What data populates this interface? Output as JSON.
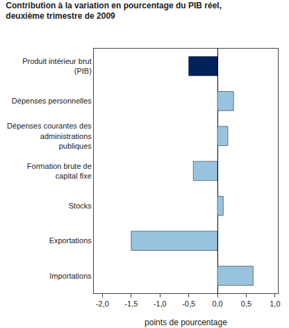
{
  "chart_data": {
    "type": "bar",
    "orientation": "horizontal",
    "title": "Contribution à la variation en pourcentage du PIB réel,\ndeuxième trimestre de 2009",
    "categories": [
      "Importations",
      "Exportations",
      "Stocks",
      "Formation brute de\ncapital fixe",
      "Dépenses courantes des\nadministrations\npubliques",
      "Dépenses personnelles",
      "Produit intérieur brut\n(PIB)"
    ],
    "values": [
      0.62,
      -1.5,
      0.1,
      -0.42,
      0.18,
      0.28,
      -0.5
    ],
    "colors": [
      "#99c4e0",
      "#99c4e0",
      "#99c4e0",
      "#99c4e0",
      "#99c4e0",
      "#99c4e0",
      "#00235b"
    ],
    "xlabel": "points de pourcentage",
    "xlim": [
      -2.15,
      1.05
    ],
    "xticks": [
      {
        "value": -2.0,
        "label": "-2,0"
      },
      {
        "value": -1.5,
        "label": "-1,5"
      },
      {
        "value": -1.0,
        "label": "-1,0"
      },
      {
        "value": -0.5,
        "label": "-0,5"
      },
      {
        "value": 0.0,
        "label": "0,0"
      },
      {
        "value": 0.5,
        "label": "0,5"
      },
      {
        "value": 1.0,
        "label": "1,0"
      }
    ],
    "grid": false
  }
}
